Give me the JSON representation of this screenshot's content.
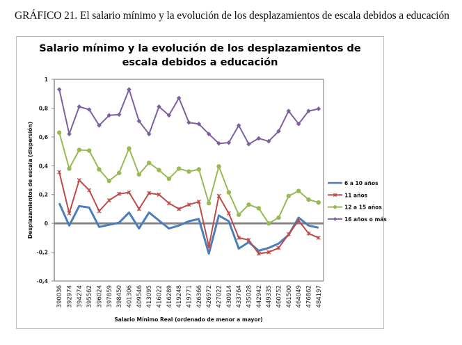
{
  "caption": "GRÁFICO 21. El salario mínimo y la evolución de los desplazamientos de escala debidos a educación",
  "chart_data": {
    "type": "line",
    "title": "Salario mínimo y la evolución de los desplazamientos de escala debidos a educación",
    "title_lines": [
      "Salario mínimo y la evolución de los desplazamientos de",
      "escala debidos a educación"
    ],
    "xlabel": "Salario Mínimo Real (ordenado de menor a mayor)",
    "ylabel": "Desplazamientos de escala (dispersión)",
    "ylim": [
      -0.4,
      1
    ],
    "yticks": [
      -0.4,
      -0.2,
      0,
      0.2,
      0.4,
      0.6,
      0.8,
      1
    ],
    "ytick_labels": [
      "-0,4",
      "-0,2",
      "0",
      "0,2",
      "0,4",
      "0,6",
      "0,8",
      "1"
    ],
    "grid": false,
    "legend_position": "right",
    "categories": [
      "390036",
      "392974",
      "394274",
      "395562",
      "396024",
      "397859",
      "398450",
      "401306",
      "409546",
      "413095",
      "416022",
      "416289",
      "419248",
      "419771",
      "426366",
      "426972",
      "427022",
      "430914",
      "433764",
      "435028",
      "442942",
      "449335",
      "460752",
      "461500",
      "464049",
      "476862",
      "484197"
    ],
    "series": [
      {
        "name": "6 a 10 años",
        "color": "#4a7ebb",
        "marker": "none",
        "values": [
          0.14,
          -0.015,
          0.12,
          0.11,
          -0.025,
          -0.01,
          0.005,
          0.075,
          -0.035,
          0.075,
          0.02,
          -0.035,
          -0.015,
          0.015,
          0.03,
          -0.21,
          0.055,
          0.015,
          -0.175,
          -0.13,
          -0.19,
          -0.17,
          -0.14,
          -0.08,
          0.04,
          -0.015,
          -0.03
        ]
      },
      {
        "name": "11 años",
        "color": "#be4b48",
        "marker": "x",
        "values": [
          0.355,
          0.07,
          0.3,
          0.23,
          0.085,
          0.16,
          0.205,
          0.215,
          0.1,
          0.21,
          0.2,
          0.14,
          0.1,
          0.13,
          0.15,
          -0.16,
          0.19,
          0.07,
          -0.1,
          -0.115,
          -0.21,
          -0.2,
          -0.17,
          -0.075,
          0.02,
          -0.07,
          -0.1
        ]
      },
      {
        "name": "12 a 15 años",
        "color": "#98b954",
        "marker": "circle",
        "values": [
          0.63,
          0.38,
          0.51,
          0.505,
          0.375,
          0.295,
          0.35,
          0.52,
          0.34,
          0.42,
          0.37,
          0.31,
          0.38,
          0.36,
          0.375,
          0.14,
          0.395,
          0.215,
          0.06,
          0.13,
          0.105,
          0.0,
          0.04,
          0.19,
          0.225,
          0.165,
          0.145
        ]
      },
      {
        "name": "16 años o más",
        "color": "#7d60a0",
        "marker": "diamond",
        "values": [
          0.93,
          0.62,
          0.81,
          0.79,
          0.68,
          0.75,
          0.755,
          0.93,
          0.71,
          0.62,
          0.81,
          0.75,
          0.87,
          0.7,
          0.69,
          0.62,
          0.555,
          0.56,
          0.68,
          0.55,
          0.59,
          0.57,
          0.64,
          0.78,
          0.69,
          0.78,
          0.795
        ]
      }
    ]
  }
}
